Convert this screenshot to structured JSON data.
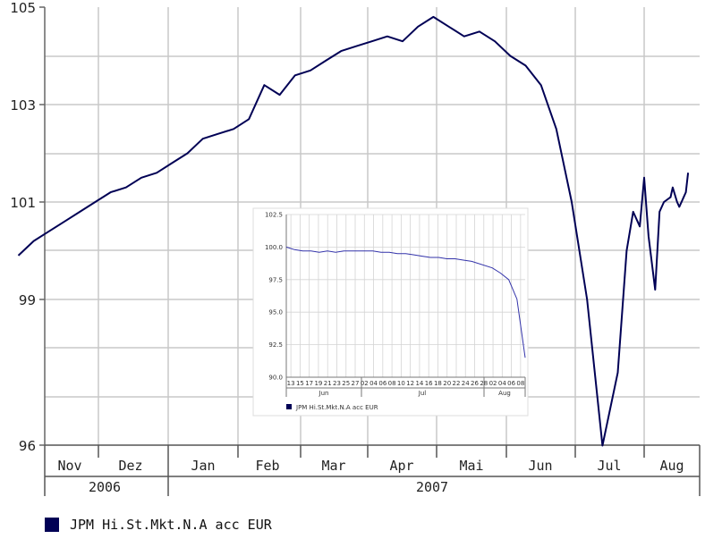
{
  "legend": {
    "label": "JPM Hi.St.Mkt.N.A acc EUR",
    "color": "#000055"
  },
  "chart_data": [
    {
      "type": "line",
      "title": "",
      "ylim": [
        96,
        105
      ],
      "y_ticks": [
        "105",
        "103",
        "101",
        "99",
        "96"
      ],
      "month_labels": [
        "Nov",
        "Dez",
        "Jan",
        "Feb",
        "Mar",
        "Apr",
        "Mai",
        "Jun",
        "Jul",
        "Aug"
      ],
      "year_labels": [
        "2006",
        "2007"
      ],
      "grid": true,
      "line_color": "#000055",
      "series": [
        {
          "name": "JPM Hi.St.Mkt.N.A acc EUR",
          "x": [
            "2006-10-20",
            "2006-10-27",
            "2006-11-03",
            "2006-11-10",
            "2006-11-17",
            "2006-11-24",
            "2006-12-01",
            "2006-12-08",
            "2006-12-15",
            "2006-12-22",
            "2006-12-29",
            "2007-01-05",
            "2007-01-12",
            "2007-01-19",
            "2007-01-26",
            "2007-02-02",
            "2007-02-09",
            "2007-02-16",
            "2007-02-23",
            "2007-03-02",
            "2007-03-09",
            "2007-03-16",
            "2007-03-23",
            "2007-03-30",
            "2007-04-06",
            "2007-04-13",
            "2007-04-20",
            "2007-04-27",
            "2007-05-04",
            "2007-05-11",
            "2007-05-18",
            "2007-05-25",
            "2007-06-01",
            "2007-06-08",
            "2007-06-15",
            "2007-06-22",
            "2007-06-29",
            "2007-07-06",
            "2007-07-13",
            "2007-07-20",
            "2007-07-24",
            "2007-07-27",
            "2007-07-30",
            "2007-08-01",
            "2007-08-03",
            "2007-08-06",
            "2007-08-08",
            "2007-08-10",
            "2007-08-13",
            "2007-08-14",
            "2007-08-16",
            "2007-08-17",
            "2007-08-20",
            "2007-08-21"
          ],
          "values": [
            99.9,
            100.2,
            100.4,
            100.6,
            100.8,
            101.0,
            101.2,
            101.3,
            101.5,
            101.6,
            101.8,
            102.0,
            102.3,
            102.4,
            102.5,
            102.7,
            103.4,
            103.2,
            103.6,
            103.7,
            103.9,
            104.1,
            104.2,
            104.3,
            104.4,
            104.3,
            104.6,
            104.8,
            104.6,
            104.4,
            104.5,
            104.3,
            104.0,
            103.8,
            103.4,
            102.5,
            101.0,
            99.0,
            96.0,
            97.5,
            100.0,
            100.8,
            100.5,
            101.5,
            100.3,
            99.2,
            100.8,
            101.0,
            101.1,
            101.3,
            101.0,
            100.9,
            101.2,
            101.6
          ]
        }
      ]
    },
    {
      "type": "line",
      "title": "",
      "ylim": [
        90.0,
        102.5
      ],
      "y_ticks": [
        "102.5",
        "100.0",
        "97.5",
        "95.0",
        "92.5",
        "90.0"
      ],
      "x_tick_labels": [
        "13",
        "15",
        "17",
        "19",
        "21",
        "23",
        "25",
        "27",
        "02",
        "04",
        "06",
        "08",
        "10",
        "12",
        "14",
        "16",
        "18",
        "20",
        "22",
        "24",
        "26",
        "28",
        "02",
        "04",
        "06",
        "08"
      ],
      "month_labels": [
        "Jun",
        "Jul",
        "Aug"
      ],
      "legend_label": "JPM Hi.St.Mkt.N.A acc EUR",
      "line_color": "#3333aa",
      "series": [
        {
          "name": "JPM Hi.St.Mkt.N.A acc EUR",
          "x": [
            "2007-06-13",
            "2007-06-15",
            "2007-06-17",
            "2007-06-19",
            "2007-06-21",
            "2007-06-23",
            "2007-06-25",
            "2007-06-27",
            "2007-07-02",
            "2007-07-04",
            "2007-07-06",
            "2007-07-08",
            "2007-07-10",
            "2007-07-12",
            "2007-07-14",
            "2007-07-16",
            "2007-07-18",
            "2007-07-20",
            "2007-07-22",
            "2007-07-24",
            "2007-07-26",
            "2007-07-28",
            "2007-08-02",
            "2007-08-04",
            "2007-08-06",
            "2007-08-08",
            "2007-08-10"
          ],
          "values": [
            100.0,
            99.8,
            99.7,
            99.7,
            99.6,
            99.7,
            99.6,
            99.7,
            99.7,
            99.7,
            99.6,
            99.6,
            99.5,
            99.5,
            99.4,
            99.3,
            99.2,
            99.2,
            99.1,
            99.1,
            99.0,
            98.9,
            98.4,
            98.0,
            97.5,
            96.0,
            91.5
          ]
        }
      ]
    }
  ]
}
